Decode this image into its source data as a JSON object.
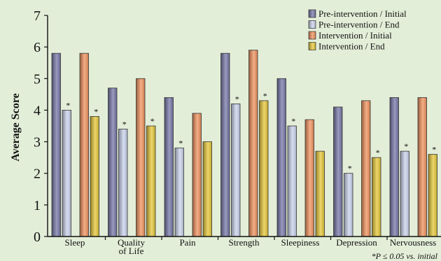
{
  "chart_data": {
    "type": "bar",
    "title": "",
    "xlabel": "",
    "ylabel": "Average Score",
    "ylim": [
      0,
      7
    ],
    "yticks": [
      "0",
      "1",
      "2",
      "3",
      "4",
      "5",
      "6",
      "7"
    ],
    "grid": false,
    "legend_position": "top-right",
    "categories": [
      "Sleep",
      "Quality\nof Life",
      "Pain",
      "Strength",
      "Sleepiness",
      "Depression",
      "Nervousness"
    ],
    "series": [
      {
        "name": "Pre-intervention / Initial",
        "color": "#7678a8",
        "values": [
          5.8,
          4.7,
          4.4,
          5.8,
          5.0,
          4.1,
          4.4
        ],
        "stars": [
          false,
          false,
          false,
          false,
          false,
          false,
          false
        ]
      },
      {
        "name": "Pre-intervention / End",
        "color": "#c9d3ec",
        "values": [
          4.0,
          3.4,
          2.8,
          4.2,
          3.5,
          2.0,
          2.7
        ],
        "stars": [
          true,
          true,
          true,
          true,
          true,
          true,
          true
        ]
      },
      {
        "name": "Intervention / Initial",
        "color": "#f0935e",
        "values": [
          5.8,
          5.0,
          3.9,
          5.9,
          3.7,
          4.3,
          4.4
        ],
        "stars": [
          false,
          false,
          false,
          false,
          false,
          false,
          false
        ]
      },
      {
        "name": "Intervention / End",
        "color": "#e6c83a",
        "values": [
          3.8,
          3.5,
          3.0,
          4.3,
          2.7,
          2.5,
          2.6
        ],
        "stars": [
          true,
          true,
          false,
          true,
          false,
          true,
          true
        ]
      }
    ],
    "star_symbol": "*",
    "footnote": "*P ≤ 0.05 vs. initial"
  }
}
